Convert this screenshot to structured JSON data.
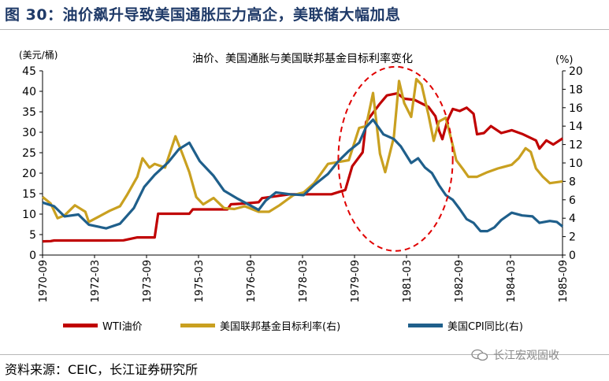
{
  "figure_title": "图 30：油价飙升导致美国通胀压力高企，美联储大幅加息",
  "source": "资料来源：CEIC，长江证券研究所",
  "watermark": "长江宏观固收",
  "colors": {
    "wti": "#c00000",
    "ffr": "#c9a020",
    "cpi": "#1f5f8b",
    "title": "#1f3a68",
    "circle": "#e00000"
  },
  "chart_data": {
    "type": "line",
    "title": "油价、美国通胀与美国联邦基金目标利率变化",
    "left_axis": {
      "label": "(美元/桶)",
      "min": 0,
      "max": 45,
      "ticks": [
        "0",
        "5",
        "10",
        "15",
        "20",
        "25",
        "30",
        "35",
        "40",
        "45"
      ]
    },
    "right_axis": {
      "label": "(%)",
      "min": 0,
      "max": 20,
      "ticks": [
        "0",
        "2",
        "4",
        "6",
        "8",
        "10",
        "12",
        "14",
        "16",
        "18",
        "20"
      ]
    },
    "x_axis": {
      "start": 1970.667,
      "end": 1985.667,
      "tick_labels": [
        "1970-09",
        "1972-03",
        "1973-09",
        "1975-03",
        "1976-09",
        "1978-03",
        "1979-09",
        "1981-03",
        "1982-09",
        "1984-03",
        "1985-09"
      ]
    },
    "x_unit": "decimal year",
    "series": [
      {
        "name": "WTI油价",
        "axis": "left",
        "color_key": "wti",
        "points": [
          [
            1970.67,
            3.35
          ],
          [
            1970.9,
            3.4
          ],
          [
            1971.0,
            3.56
          ],
          [
            1972.5,
            3.56
          ],
          [
            1973.0,
            3.6
          ],
          [
            1973.4,
            4.3
          ],
          [
            1973.9,
            4.3
          ],
          [
            1974.0,
            10.1
          ],
          [
            1974.9,
            10.1
          ],
          [
            1975.0,
            11.16
          ],
          [
            1976.0,
            11.16
          ],
          [
            1976.1,
            12.4
          ],
          [
            1976.5,
            12.6
          ],
          [
            1976.9,
            12.9
          ],
          [
            1977.0,
            13.9
          ],
          [
            1977.8,
            14.85
          ],
          [
            1978.5,
            14.85
          ],
          [
            1979.0,
            14.85
          ],
          [
            1979.4,
            15.9
          ],
          [
            1979.6,
            21.7
          ],
          [
            1979.9,
            25.1
          ],
          [
            1980.0,
            32.5
          ],
          [
            1980.4,
            37.0
          ],
          [
            1980.6,
            39.0
          ],
          [
            1980.9,
            39.5
          ],
          [
            1981.1,
            38.2
          ],
          [
            1981.4,
            37.9
          ],
          [
            1981.8,
            36.2
          ],
          [
            1982.0,
            33.9
          ],
          [
            1982.1,
            30.5
          ],
          [
            1982.2,
            28.3
          ],
          [
            1982.35,
            33.0
          ],
          [
            1982.5,
            35.7
          ],
          [
            1982.7,
            35.2
          ],
          [
            1982.9,
            36.0
          ],
          [
            1983.1,
            34.5
          ],
          [
            1983.2,
            29.5
          ],
          [
            1983.4,
            29.8
          ],
          [
            1983.6,
            31.5
          ],
          [
            1983.9,
            29.8
          ],
          [
            1984.2,
            30.5
          ],
          [
            1984.5,
            29.6
          ],
          [
            1984.9,
            28.0
          ],
          [
            1985.0,
            26.0
          ],
          [
            1985.2,
            28.0
          ],
          [
            1985.4,
            27.0
          ],
          [
            1985.67,
            28.5
          ]
        ]
      },
      {
        "name": "美国联邦基金目标利率(右)",
        "axis": "right",
        "color_key": "ffr",
        "points": [
          [
            1970.67,
            6.3
          ],
          [
            1970.9,
            5.6
          ],
          [
            1971.1,
            4.0
          ],
          [
            1971.3,
            4.3
          ],
          [
            1971.6,
            5.4
          ],
          [
            1971.9,
            4.7
          ],
          [
            1972.0,
            3.6
          ],
          [
            1972.3,
            4.2
          ],
          [
            1972.6,
            4.8
          ],
          [
            1972.9,
            5.3
          ],
          [
            1973.1,
            6.5
          ],
          [
            1973.4,
            8.5
          ],
          [
            1973.55,
            10.5
          ],
          [
            1973.75,
            9.5
          ],
          [
            1973.9,
            9.9
          ],
          [
            1974.2,
            9.5
          ],
          [
            1974.5,
            12.9
          ],
          [
            1974.7,
            11.0
          ],
          [
            1974.9,
            9.0
          ],
          [
            1975.1,
            6.3
          ],
          [
            1975.3,
            5.5
          ],
          [
            1975.6,
            6.2
          ],
          [
            1975.9,
            5.1
          ],
          [
            1976.2,
            5.0
          ],
          [
            1976.5,
            5.3
          ],
          [
            1976.9,
            4.7
          ],
          [
            1977.2,
            4.7
          ],
          [
            1977.5,
            5.4
          ],
          [
            1977.9,
            6.5
          ],
          [
            1978.2,
            6.8
          ],
          [
            1978.5,
            7.8
          ],
          [
            1978.9,
            9.9
          ],
          [
            1979.2,
            10.1
          ],
          [
            1979.5,
            10.3
          ],
          [
            1979.8,
            13.8
          ],
          [
            1980.0,
            14.0
          ],
          [
            1980.2,
            17.6
          ],
          [
            1980.4,
            11.0
          ],
          [
            1980.55,
            9.0
          ],
          [
            1980.8,
            12.8
          ],
          [
            1980.95,
            18.9
          ],
          [
            1981.1,
            16.5
          ],
          [
            1981.3,
            15.0
          ],
          [
            1981.45,
            19.1
          ],
          [
            1981.6,
            18.5
          ],
          [
            1981.8,
            15.2
          ],
          [
            1981.95,
            12.4
          ],
          [
            1982.1,
            14.5
          ],
          [
            1982.3,
            14.9
          ],
          [
            1982.5,
            11.9
          ],
          [
            1982.6,
            10.3
          ],
          [
            1982.8,
            9.3
          ],
          [
            1982.95,
            8.5
          ],
          [
            1983.2,
            8.5
          ],
          [
            1983.5,
            9.0
          ],
          [
            1983.8,
            9.4
          ],
          [
            1984.2,
            9.8
          ],
          [
            1984.4,
            10.5
          ],
          [
            1984.6,
            11.6
          ],
          [
            1984.75,
            11.2
          ],
          [
            1984.9,
            9.4
          ],
          [
            1985.1,
            8.5
          ],
          [
            1985.3,
            7.8
          ],
          [
            1985.67,
            8.0
          ]
        ]
      },
      {
        "name": "美国CPI同比(右)",
        "axis": "right",
        "color_key": "cpi",
        "points": [
          [
            1970.67,
            5.7
          ],
          [
            1971.0,
            5.3
          ],
          [
            1971.3,
            4.2
          ],
          [
            1971.7,
            4.4
          ],
          [
            1972.0,
            3.3
          ],
          [
            1972.5,
            2.9
          ],
          [
            1972.9,
            3.4
          ],
          [
            1973.3,
            5.1
          ],
          [
            1973.6,
            7.4
          ],
          [
            1973.9,
            8.7
          ],
          [
            1974.3,
            10.1
          ],
          [
            1974.6,
            11.5
          ],
          [
            1974.9,
            12.2
          ],
          [
            1975.2,
            10.2
          ],
          [
            1975.6,
            8.6
          ],
          [
            1975.9,
            7.0
          ],
          [
            1976.3,
            6.1
          ],
          [
            1976.6,
            5.5
          ],
          [
            1976.9,
            4.9
          ],
          [
            1977.1,
            5.9
          ],
          [
            1977.4,
            6.8
          ],
          [
            1977.8,
            6.6
          ],
          [
            1978.2,
            6.5
          ],
          [
            1978.5,
            7.6
          ],
          [
            1978.9,
            8.8
          ],
          [
            1979.2,
            10.2
          ],
          [
            1979.5,
            11.3
          ],
          [
            1979.8,
            12.2
          ],
          [
            1980.0,
            13.9
          ],
          [
            1980.2,
            14.7
          ],
          [
            1980.5,
            13.1
          ],
          [
            1980.8,
            12.6
          ],
          [
            1981.0,
            11.8
          ],
          [
            1981.3,
            10.0
          ],
          [
            1981.5,
            10.5
          ],
          [
            1981.7,
            9.5
          ],
          [
            1981.9,
            8.9
          ],
          [
            1982.1,
            7.6
          ],
          [
            1982.3,
            6.5
          ],
          [
            1982.5,
            6.0
          ],
          [
            1982.7,
            5.0
          ],
          [
            1982.9,
            3.9
          ],
          [
            1983.1,
            3.5
          ],
          [
            1983.3,
            2.6
          ],
          [
            1983.5,
            2.6
          ],
          [
            1983.7,
            3.0
          ],
          [
            1983.9,
            3.8
          ],
          [
            1984.2,
            4.6
          ],
          [
            1984.5,
            4.3
          ],
          [
            1984.8,
            4.2
          ],
          [
            1985.0,
            3.5
          ],
          [
            1985.3,
            3.7
          ],
          [
            1985.5,
            3.6
          ],
          [
            1985.67,
            3.1
          ]
        ]
      }
    ],
    "annotation": {
      "type": "dashed-ellipse",
      "x_range": [
        1979.2,
        1982.5
      ],
      "y_range_left": [
        1,
        46
      ]
    }
  }
}
